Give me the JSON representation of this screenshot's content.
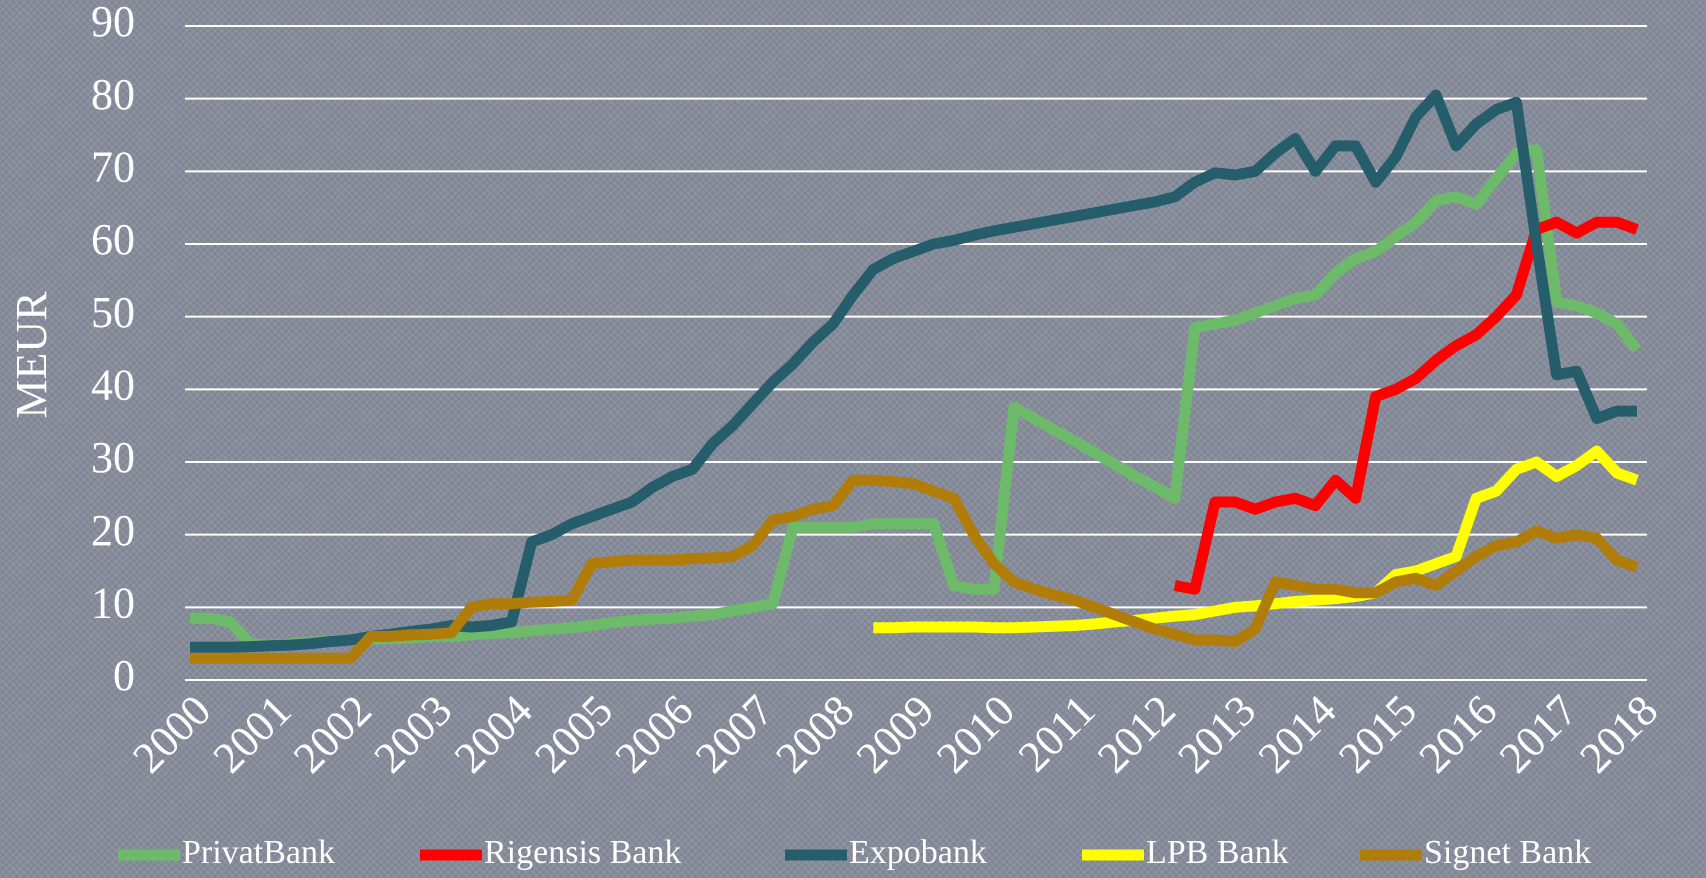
{
  "chart_data": {
    "type": "line",
    "y_label": "MEUR",
    "x": [
      2000,
      2000.25,
      2000.5,
      2000.75,
      2001,
      2001.25,
      2001.5,
      2001.75,
      2002,
      2002.25,
      2002.5,
      2002.75,
      2003,
      2003.25,
      2003.5,
      2003.75,
      2004,
      2004.25,
      2004.5,
      2004.75,
      2005,
      2005.25,
      2005.5,
      2005.75,
      2006,
      2006.25,
      2006.5,
      2006.75,
      2007,
      2007.25,
      2007.5,
      2007.75,
      2008,
      2008.25,
      2008.5,
      2008.75,
      2009,
      2009.25,
      2009.5,
      2009.75,
      2010,
      2010.25,
      2010.5,
      2010.75,
      2011,
      2011.25,
      2011.5,
      2011.75,
      2012,
      2012.25,
      2012.5,
      2012.75,
      2013,
      2013.25,
      2013.5,
      2013.75,
      2014,
      2014.25,
      2014.5,
      2014.75,
      2015,
      2015.25,
      2015.5,
      2015.75,
      2016,
      2016.25,
      2016.5,
      2016.75,
      2017,
      2017.25,
      2017.5,
      2017.75,
      2018
    ],
    "series": [
      {
        "name": "PrivatBank",
        "color": "#6dbb6a",
        "values": [
          8.5,
          8.5,
          8,
          5,
          4.8,
          5,
          5.2,
          5.4,
          5.5,
          5.6,
          5.7,
          5.8,
          6,
          6,
          6.2,
          6.4,
          6.5,
          6.8,
          7,
          7.2,
          7.5,
          7.9,
          8.2,
          8.4,
          8.5,
          8.8,
          9,
          9.5,
          10,
          10.5,
          21,
          21,
          21,
          21,
          21.5,
          21.5,
          21.5,
          21.5,
          13,
          12.5,
          12.5,
          37.5,
          36,
          34.4,
          32.9,
          31.3,
          29.7,
          28.1,
          26.6,
          25,
          48.5,
          49,
          49.5,
          50.5,
          51.5,
          52.5,
          53,
          56,
          58,
          59,
          61,
          63,
          66,
          66.5,
          65.5,
          69,
          72.5,
          73,
          52,
          51.5,
          50.5,
          49,
          45.5
        ]
      },
      {
        "name": "Rigensis Bank",
        "color": "#ff0000",
        "values": [
          null,
          null,
          null,
          null,
          null,
          null,
          null,
          null,
          null,
          null,
          null,
          null,
          null,
          null,
          null,
          null,
          null,
          null,
          null,
          null,
          null,
          null,
          null,
          null,
          null,
          null,
          null,
          null,
          null,
          null,
          null,
          null,
          null,
          null,
          null,
          null,
          null,
          null,
          null,
          null,
          null,
          null,
          null,
          null,
          null,
          null,
          null,
          null,
          null,
          13,
          12.5,
          24.5,
          24.5,
          23.5,
          24.5,
          25,
          24,
          27.5,
          25,
          39,
          40,
          41.5,
          44,
          46,
          47.5,
          50,
          53,
          62,
          63,
          61.5,
          63,
          63,
          62
        ]
      },
      {
        "name": "Expobank",
        "color": "#255d6b",
        "values": [
          4.5,
          4.5,
          4.5,
          4.6,
          4.7,
          4.8,
          5,
          5.3,
          5.5,
          6,
          6.3,
          6.7,
          7,
          7.5,
          7.3,
          7.5,
          8,
          19,
          20,
          21.5,
          22.5,
          23.5,
          24.5,
          26.5,
          28,
          29,
          32.5,
          35,
          38,
          41,
          43.5,
          46.5,
          49,
          53,
          56.5,
          58,
          59,
          60,
          60.5,
          61.2,
          61.8,
          62.3,
          62.8,
          63.3,
          63.8,
          64.3,
          64.8,
          65.3,
          65.8,
          66.5,
          68.5,
          69.8,
          69.5,
          70,
          72.5,
          74.5,
          70,
          73.5,
          73.5,
          68.5,
          72,
          77.5,
          80.5,
          73.5,
          76.5,
          78.5,
          79.5,
          60,
          42,
          42.5,
          36,
          37,
          37
        ]
      },
      {
        "name": "LPB Bank",
        "color": "#ffff00",
        "values": [
          null,
          null,
          null,
          null,
          null,
          null,
          null,
          null,
          null,
          null,
          null,
          null,
          null,
          null,
          null,
          null,
          null,
          null,
          null,
          null,
          null,
          null,
          null,
          null,
          null,
          null,
          null,
          null,
          null,
          null,
          null,
          null,
          null,
          null,
          7.2,
          7.2,
          7.3,
          7.3,
          7.3,
          7.3,
          7.2,
          7.2,
          7.3,
          7.4,
          7.5,
          7.7,
          8,
          8.2,
          8.5,
          8.8,
          9,
          9.5,
          10,
          10.2,
          10.5,
          10.8,
          11,
          11.2,
          11.5,
          12,
          14.5,
          15,
          16,
          17,
          25,
          26,
          29,
          30,
          28,
          29.5,
          31.5,
          28.5,
          27.5
        ]
      },
      {
        "name": "Signet Bank",
        "color": "#b07d0a",
        "values": [
          3,
          3,
          3,
          3,
          3,
          3,
          3,
          3,
          3,
          6,
          6,
          6.2,
          6.3,
          6.5,
          10,
          10.5,
          10.5,
          10.7,
          10.8,
          11,
          16,
          16.3,
          16.5,
          16.5,
          16.5,
          16.7,
          16.8,
          17,
          18.5,
          22,
          22.5,
          23.5,
          24,
          27.5,
          27.5,
          27.3,
          27,
          26,
          25,
          20,
          16,
          13.5,
          12.5,
          11.7,
          11,
          10,
          9,
          8,
          7,
          6.3,
          5.5,
          5.5,
          5.3,
          7,
          13.5,
          13,
          12.5,
          12.5,
          12,
          12,
          13.5,
          14,
          13,
          15,
          17,
          18.5,
          19,
          20.5,
          19.5,
          20,
          19.5,
          16.5,
          15.5
        ]
      }
    ],
    "xlim": [
      2000,
      2018
    ],
    "xticks": [
      2000,
      2001,
      2002,
      2003,
      2004,
      2005,
      2006,
      2007,
      2008,
      2009,
      2010,
      2011,
      2012,
      2013,
      2014,
      2015,
      2016,
      2017,
      2018
    ],
    "ylim": [
      0,
      90
    ],
    "yticks": [
      0,
      10,
      20,
      30,
      40,
      50,
      60,
      70,
      80,
      90
    ],
    "grid": true,
    "legend": "bottom"
  }
}
